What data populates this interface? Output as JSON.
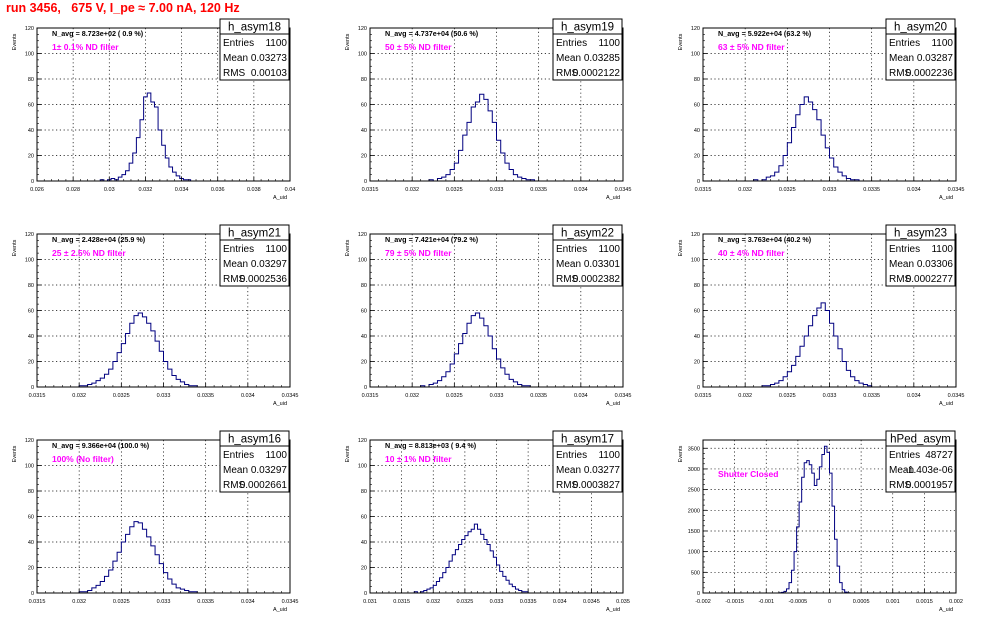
{
  "page": {
    "title": "run 3456,   675 V, I_pe ≈ 7.00 nA, 120 Hz"
  },
  "colors": {
    "title": "#ff0000",
    "histogram_line": "#000080",
    "annotation": "#ff00ff",
    "grid": "#000000",
    "frame": "#000000",
    "background": "#ffffff"
  },
  "chart_data": [
    {
      "type": "bar",
      "histogram_name": "h_asym18",
      "stats": {
        "entries_label": "Entries",
        "entries": "1100",
        "mean_label": "Mean",
        "mean": "0.03273",
        "rms_label": "RMS",
        "rms": "0.00103"
      },
      "navg_text": "N_avg = 8.723e+02 ( 0.9 %)",
      "filter_text": "1± 0.1% ND filter",
      "xlabel": "A_uid",
      "ylabel": "Events",
      "xlim": [
        0.026,
        0.04
      ],
      "ylim": [
        0,
        120
      ],
      "xticks": [
        "0.026",
        "0.028",
        "0.03",
        "0.032",
        "0.034",
        "0.036",
        "0.038",
        "0.04"
      ],
      "yticks": [
        "0",
        "20",
        "40",
        "60",
        "80",
        "100",
        "120"
      ],
      "grid": true,
      "bins": {
        "start": 0.0295,
        "width": 0.0002,
        "values": [
          1,
          0,
          1,
          2,
          1,
          3,
          5,
          8,
          14,
          22,
          34,
          48,
          66,
          69,
          62,
          58,
          40,
          28,
          18,
          11,
          7,
          4,
          2,
          1,
          1,
          0
        ]
      }
    },
    {
      "type": "bar",
      "histogram_name": "h_asym19",
      "stats": {
        "entries_label": "Entries",
        "entries": "1100",
        "mean_label": "Mean",
        "mean": "0.03285",
        "rms_label": "RMS",
        "rms": "0.0002122"
      },
      "navg_text": "N_avg = 4.737e+04 (50.6 %)",
      "filter_text": "50 ± 5% ND filter",
      "xlabel": "A_uid",
      "ylabel": "Events",
      "xlim": [
        0.0315,
        0.0345
      ],
      "ylim": [
        0,
        120
      ],
      "xticks": [
        "0.0315",
        "0.032",
        "0.0325",
        "0.033",
        "0.0335",
        "0.034",
        "0.0345"
      ],
      "yticks": [
        "0",
        "20",
        "40",
        "60",
        "80",
        "100",
        "120"
      ],
      "grid": true,
      "bins": {
        "start": 0.0322,
        "width": 5e-05,
        "values": [
          1,
          0,
          2,
          3,
          5,
          9,
          14,
          24,
          36,
          46,
          58,
          62,
          68,
          64,
          55,
          46,
          32,
          22,
          14,
          9,
          5,
          3,
          2,
          1,
          1,
          0
        ]
      }
    },
    {
      "type": "bar",
      "histogram_name": "h_asym20",
      "stats": {
        "entries_label": "Entries",
        "entries": "1100",
        "mean_label": "Mean",
        "mean": "0.03287",
        "rms_label": "RMS",
        "rms": "0.0002236"
      },
      "navg_text": "N_avg = 5.922e+04 (63.2 %)",
      "filter_text": "63 ± 5% ND filter",
      "xlabel": "A_uid",
      "ylabel": "Events",
      "xlim": [
        0.0315,
        0.0345
      ],
      "ylim": [
        0,
        120
      ],
      "xticks": [
        "0.0315",
        "0.032",
        "0.0325",
        "0.033",
        "0.0335",
        "0.034",
        "0.0345"
      ],
      "yticks": [
        "0",
        "20",
        "40",
        "60",
        "80",
        "100",
        "120"
      ],
      "grid": true,
      "bins": {
        "start": 0.0321,
        "width": 5e-05,
        "values": [
          1,
          0,
          1,
          3,
          4,
          7,
          12,
          20,
          30,
          42,
          52,
          60,
          66,
          62,
          56,
          48,
          36,
          26,
          18,
          11,
          7,
          4,
          2,
          1,
          1,
          0
        ]
      }
    },
    {
      "type": "bar",
      "histogram_name": "h_asym21",
      "stats": {
        "entries_label": "Entries",
        "entries": "1100",
        "mean_label": "Mean",
        "mean": "0.03297",
        "rms_label": "RMS",
        "rms": "0.0002536"
      },
      "navg_text": "N_avg = 2.428e+04 (25.9 %)",
      "filter_text": "25 ± 2.5% ND filter",
      "xlabel": "A_uid",
      "ylabel": "Events",
      "xlim": [
        0.0315,
        0.0345
      ],
      "ylim": [
        0,
        120
      ],
      "xticks": [
        "0.0315",
        "0.032",
        "0.0325",
        "0.033",
        "0.0335",
        "0.034",
        "0.0345"
      ],
      "yticks": [
        "0",
        "20",
        "40",
        "60",
        "80",
        "100",
        "120"
      ],
      "grid": true,
      "bins": {
        "start": 0.032,
        "width": 5e-05,
        "values": [
          1,
          1,
          2,
          3,
          5,
          7,
          10,
          14,
          20,
          27,
          34,
          42,
          50,
          56,
          58,
          55,
          50,
          44,
          36,
          28,
          20,
          14,
          9,
          6,
          4,
          2,
          1,
          1
        ]
      }
    },
    {
      "type": "bar",
      "histogram_name": "h_asym22",
      "stats": {
        "entries_label": "Entries",
        "entries": "1100",
        "mean_label": "Mean",
        "mean": "0.03301",
        "rms_label": "RMS",
        "rms": "0.0002382"
      },
      "navg_text": "N_avg = 7.421e+04 (79.2 %)",
      "filter_text": "79 ± 5% ND filter",
      "xlabel": "A_uid",
      "ylabel": "Events",
      "xlim": [
        0.0315,
        0.0345
      ],
      "ylim": [
        0,
        120
      ],
      "xticks": [
        "0.0315",
        "0.032",
        "0.0325",
        "0.033",
        "0.0335",
        "0.034",
        "0.0345"
      ],
      "yticks": [
        "0",
        "20",
        "40",
        "60",
        "80",
        "100",
        "120"
      ],
      "grid": true,
      "bins": {
        "start": 0.0321,
        "width": 5e-05,
        "values": [
          1,
          0,
          2,
          3,
          5,
          8,
          12,
          18,
          26,
          34,
          42,
          50,
          56,
          58,
          54,
          48,
          40,
          30,
          22,
          15,
          10,
          6,
          4,
          2,
          1,
          1
        ]
      }
    },
    {
      "type": "bar",
      "histogram_name": "h_asym23",
      "stats": {
        "entries_label": "Entries",
        "entries": "1100",
        "mean_label": "Mean",
        "mean": "0.03306",
        "rms_label": "RMS",
        "rms": "0.0002277"
      },
      "navg_text": "N_avg = 3.763e+04 (40.2 %)",
      "filter_text": "40 ± 4% ND filter",
      "xlabel": "A_uid",
      "ylabel": "Events",
      "xlim": [
        0.0315,
        0.0345
      ],
      "ylim": [
        0,
        120
      ],
      "xticks": [
        "0.0315",
        "0.032",
        "0.0325",
        "0.033",
        "0.0335",
        "0.034",
        "0.0345"
      ],
      "yticks": [
        "0",
        "20",
        "40",
        "60",
        "80",
        "100",
        "120"
      ],
      "grid": true,
      "bins": {
        "start": 0.0322,
        "width": 5e-05,
        "values": [
          1,
          1,
          2,
          3,
          5,
          8,
          12,
          17,
          24,
          32,
          40,
          48,
          56,
          62,
          66,
          60,
          50,
          40,
          30,
          20,
          13,
          8,
          5,
          3,
          2,
          1
        ]
      }
    },
    {
      "type": "bar",
      "histogram_name": "h_asym16",
      "stats": {
        "entries_label": "Entries",
        "entries": "1100",
        "mean_label": "Mean",
        "mean": "0.03297",
        "rms_label": "RMS",
        "rms": "0.0002661"
      },
      "navg_text": "N_avg = 9.366e+04 (100.0 %)",
      "filter_text": "100% (No filter)",
      "xlabel": "A_uid",
      "ylabel": "Events",
      "xlim": [
        0.0315,
        0.0345
      ],
      "ylim": [
        0,
        120
      ],
      "xticks": [
        "0.0315",
        "0.032",
        "0.0325",
        "0.033",
        "0.0335",
        "0.034",
        "0.0345"
      ],
      "yticks": [
        "0",
        "20",
        "40",
        "60",
        "80",
        "100",
        "120"
      ],
      "grid": true,
      "bins": {
        "start": 0.032,
        "width": 5e-05,
        "values": [
          1,
          1,
          2,
          4,
          6,
          9,
          13,
          18,
          25,
          32,
          40,
          46,
          52,
          56,
          55,
          50,
          44,
          37,
          30,
          23,
          16,
          11,
          7,
          4,
          3,
          2,
          1,
          1
        ]
      }
    },
    {
      "type": "bar",
      "histogram_name": "h_asym17",
      "stats": {
        "entries_label": "Entries",
        "entries": "1100",
        "mean_label": "Mean",
        "mean": "0.03277",
        "rms_label": "RMS",
        "rms": "0.0003827"
      },
      "navg_text": "N_avg = 8.813e+03 ( 9.4 %)",
      "filter_text": "10 ± 1% ND filter",
      "xlabel": "A_uid",
      "ylabel": "Events",
      "xlim": [
        0.031,
        0.035
      ],
      "ylim": [
        0,
        120
      ],
      "xticks": [
        "0.031",
        "0.0315",
        "0.032",
        "0.0325",
        "0.033",
        "0.0335",
        "0.034",
        "0.0345",
        "0.035"
      ],
      "yticks": [
        "0",
        "20",
        "40",
        "60",
        "80",
        "100",
        "120"
      ],
      "grid": true,
      "bins": {
        "start": 0.0317,
        "width": 5e-05,
        "values": [
          1,
          0,
          1,
          2,
          3,
          4,
          6,
          9,
          12,
          16,
          20,
          25,
          30,
          34,
          38,
          42,
          45,
          48,
          50,
          54,
          50,
          46,
          42,
          38,
          33,
          28,
          22,
          17,
          13,
          10,
          7,
          5,
          3,
          2,
          1,
          1
        ]
      }
    },
    {
      "type": "bar",
      "histogram_name": "hPed_asym",
      "stats": {
        "entries_label": "Entries",
        "entries": "48727",
        "mean_label": "Mean",
        "mean": "-1.403e-06",
        "rms_label": "RMS",
        "rms": "0.0001957"
      },
      "navg_text": "",
      "filter_text": "Shutter Closed",
      "xlabel": "A_uid",
      "ylabel": "Events",
      "xlim": [
        -0.002,
        0.002
      ],
      "ylim": [
        0,
        3700
      ],
      "xticks": [
        "-0.002",
        "-0.0015",
        "-0.001",
        "-0.0005",
        "0",
        "0.0005",
        "0.001",
        "0.0015",
        "0.002"
      ],
      "yticks": [
        "0",
        "500",
        "1000",
        "1500",
        "2000",
        "2500",
        "3000",
        "3500"
      ],
      "grid": true,
      "bins": {
        "start": -0.0008,
        "width": 4e-05,
        "values": [
          5,
          15,
          40,
          100,
          250,
          550,
          1000,
          1600,
          2200,
          2800,
          3150,
          3200,
          3100,
          2900,
          2600,
          2750,
          3050,
          3350,
          3550,
          3400,
          2900,
          2100,
          1300,
          650,
          250,
          80,
          20,
          5
        ]
      }
    }
  ]
}
